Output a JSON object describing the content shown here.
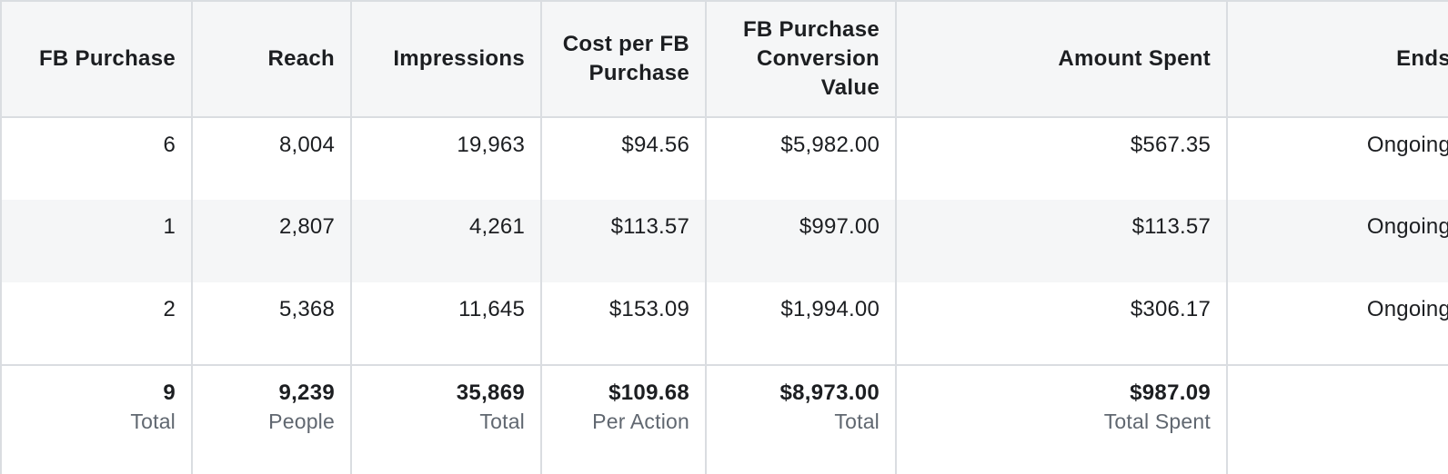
{
  "columns": [
    {
      "line1": "FB Purchase",
      "line2": "",
      "line3": ""
    },
    {
      "line1": "Reach",
      "line2": "",
      "line3": ""
    },
    {
      "line1": "Impressions",
      "line2": "",
      "line3": ""
    },
    {
      "line1": "Cost per FB",
      "line2": "Purchase",
      "line3": ""
    },
    {
      "line1": "FB Purchase",
      "line2": "Conversion",
      "line3": "Value"
    },
    {
      "line1": "Amount Spent",
      "line2": "",
      "line3": ""
    },
    {
      "line1": "Ends",
      "line2": "",
      "line3": ""
    }
  ],
  "rows": [
    [
      "6",
      "8,004",
      "19,963",
      "$94.56",
      "$5,982.00",
      "$567.35",
      "Ongoing"
    ],
    [
      "1",
      "2,807",
      "4,261",
      "$113.57",
      "$997.00",
      "$113.57",
      "Ongoing"
    ],
    [
      "2",
      "5,368",
      "11,645",
      "$153.09",
      "$1,994.00",
      "$306.17",
      "Ongoing"
    ]
  ],
  "totals": [
    {
      "value": "9",
      "label": "Total"
    },
    {
      "value": "9,239",
      "label": "People"
    },
    {
      "value": "35,869",
      "label": "Total"
    },
    {
      "value": "$109.68",
      "label": "Per Action"
    },
    {
      "value": "$8,973.00",
      "label": "Total"
    },
    {
      "value": "$987.09",
      "label": "Total Spent"
    },
    {
      "value": "",
      "label": ""
    }
  ]
}
